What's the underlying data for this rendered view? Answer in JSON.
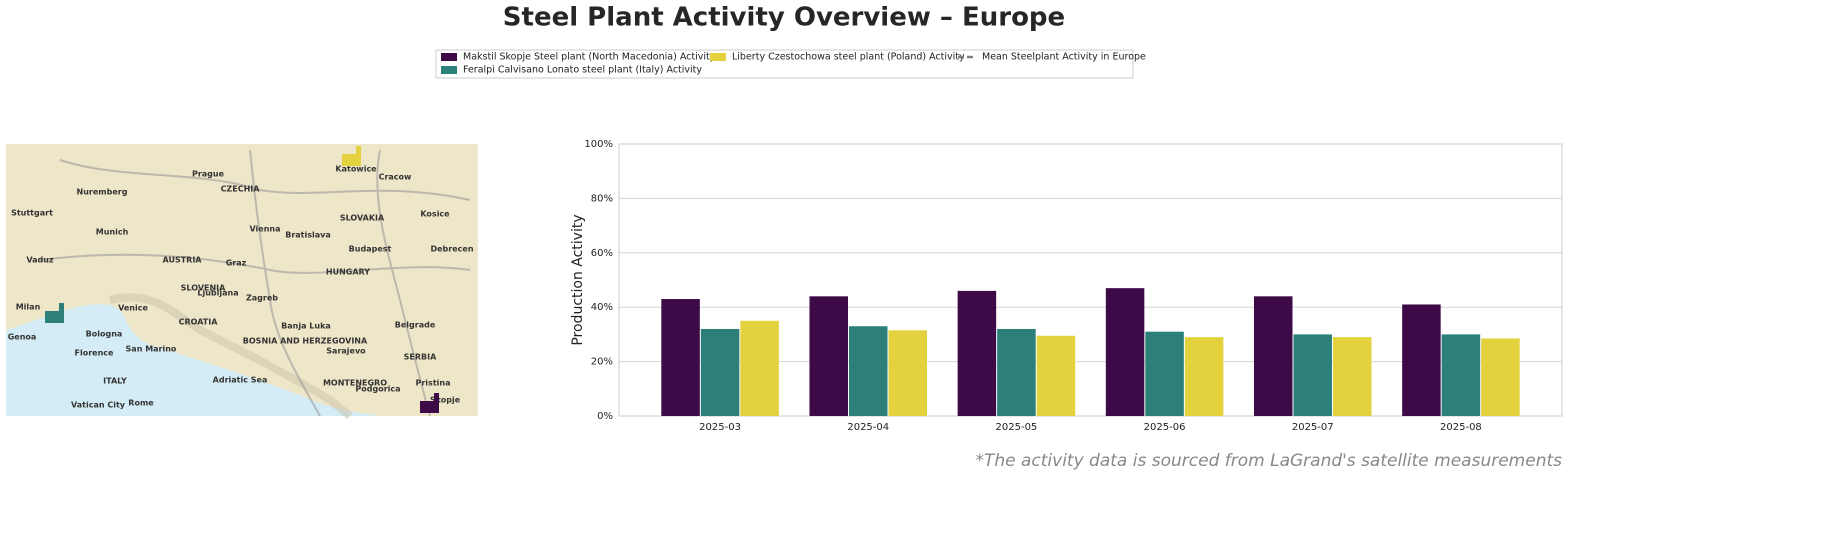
{
  "chart_data": {
    "type": "bar",
    "title": "Steel Plant Activity Overview – Europe",
    "ylabel": "Production Activity",
    "footnote": "*The activity data is sourced from LaGrand's satellite measurements",
    "categories": [
      "2025-03",
      "2025-04",
      "2025-05",
      "2025-06",
      "2025-07",
      "2025-08"
    ],
    "series": [
      {
        "name": "Makstil Skopje Steel plant (North Macedonia) Activity",
        "color": "#3d0a47",
        "values": [
          43,
          44,
          46,
          47,
          44,
          41
        ]
      },
      {
        "name": "Feralpi Calvisano Lonato steel plant (Italy) Activity",
        "color": "#2c8079",
        "values": [
          32,
          33,
          32,
          31,
          30,
          30
        ]
      },
      {
        "name": "Liberty Czestochowa steel plant (Poland) Activity",
        "color": "#e3d13e",
        "values": [
          35,
          31.5,
          29.5,
          29,
          29,
          28.5
        ]
      }
    ],
    "mean_line": {
      "name": "Mean Steelplant Activity in Europe",
      "color": "#808080"
    },
    "ylim": [
      0,
      100
    ],
    "yticks": [
      {
        "value": 0,
        "label": "0%"
      },
      {
        "value": 20,
        "label": "20%"
      },
      {
        "value": 40,
        "label": "40%"
      },
      {
        "value": 60,
        "label": "60%"
      },
      {
        "value": 80,
        "label": "80%"
      },
      {
        "value": 100,
        "label": "100%"
      }
    ],
    "grid": true,
    "map_labels": [
      "Prague",
      "CZECHIA",
      "Katowice",
      "Cracow",
      "Nuremberg",
      "Stuttgart",
      "Munich",
      "Vienna",
      "Bratislava",
      "SLOVAKIA",
      "Kosice",
      "Budapest",
      "Debrecen",
      "AUSTRIA",
      "Graz",
      "HUNGARY",
      "Vaduz",
      "Milan",
      "Venice",
      "SLOVENIA",
      "Ljubljana",
      "Zagreb",
      "CROATIA",
      "Banja Luka",
      "BOSNIA AND HERZEGOVINA",
      "Belgrade",
      "Genoa",
      "Bologna",
      "Florence",
      "San Marino",
      "Sarajevo",
      "SERBIA",
      "ITALY",
      "Adriatic Sea",
      "MONTENEGRO",
      "Podgorica",
      "Pristina",
      "Vatican City",
      "Rome",
      "Skopje"
    ]
  }
}
